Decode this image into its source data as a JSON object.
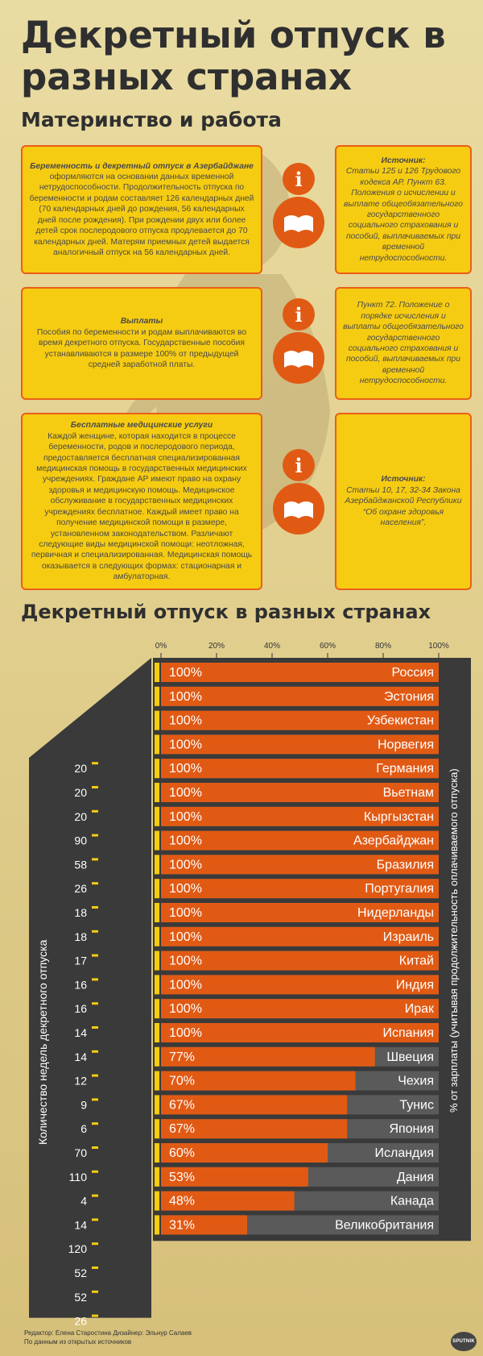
{
  "header": {
    "title": "Декретный отпуск в разных странах",
    "subtitle": "Материнство и работа"
  },
  "cards": [
    {
      "heading": "Беременность и декретный отпуск в Азербайджане",
      "body": "оформляются на основании данных временной нетрудоспособности. Продолжительность отпуска по беременности и родам составляет 126 календарных дней (70 календарных дней до рождения, 56 календарных дней после рождения). При рождении двух или более детей срок послеродового отпуска продлевается до 70 календарных дней. Матерям приемных детей выдается аналогичный отпуск на 56 календарных дней.",
      "source_heading": "Источник:",
      "source_text": "Статьи 125 и 126 Трудового кодекса АР. Пункт 63. Положения о исчислении и выплате общеобязательного государственного социального страхования и пособий, выплачиваемых при временной нетрудоспособности."
    },
    {
      "heading": "Выплаты",
      "body": "Пособия по беременности и родам выплачиваются во время декретного отпуска. Государственные пособия устанавливаются в размере 100% от предыдущей средней заработной платы.",
      "source_heading": "",
      "source_text": "Пункт 72. Положение о порядке исчисления и выплаты общеобязательного государственного социального страхования и пособий, выплачиваемых при временной нетрудоспособности."
    },
    {
      "heading": "Бесплатные медицинские услуги",
      "body": "Каждой женщине, которая находится в процессе беременности, родов и послеродового периода, предоставляется бесплатная специализированная медицинская помощь в государственных медицинских учреждениях. Граждане АР имеют право на охрану здоровья и медицинскую помощь. Медицинское обслуживание в государственных медицинских учреждениях бесплатное. Каждый имеет право на получение медицинской помощи в размере, установленном законодательством. Различают следующие виды медицинской помощи: неотложная, первичная и специализированная. Медицинская помощь оказывается в следующих формах: стационарная и амбулаторная.",
      "source_heading": "Источник:",
      "source_text": "Статьи 10, 17, 32-34 Закона Азербайджанской Республики “Об охране здоровья населения”."
    }
  ],
  "chart_data": {
    "type": "bar",
    "title": "Декретный отпуск в разных странах",
    "xlabel": "% от зарплаты (учитывая продолжительность оплачиваемого отпуска)",
    "ylabel": "Количество недель декретного отпуска",
    "x_ticks": [
      "0%",
      "20%",
      "40%",
      "60%",
      "80%",
      "100%"
    ],
    "xlim": [
      0,
      100
    ],
    "categories": [
      "Россия",
      "Эстония",
      "Узбекистан",
      "Норвегия",
      "Германия",
      "Вьетнам",
      "Кыргызстан",
      "Азербайджан",
      "Бразилия",
      "Португалия",
      "Нидерланды",
      "Израиль",
      "Китай",
      "Индия",
      "Ирак",
      "Испания",
      "Швеция",
      "Чехия",
      "Тунис",
      "Япония",
      "Исландия",
      "Дания",
      "Канада",
      "Великобритания"
    ],
    "values": [
      100,
      100,
      100,
      100,
      100,
      100,
      100,
      100,
      100,
      100,
      100,
      100,
      100,
      100,
      100,
      100,
      77,
      70,
      67,
      67,
      60,
      53,
      48,
      31
    ],
    "value_labels": [
      "100%",
      "100%",
      "100%",
      "100%",
      "100%",
      "100%",
      "100%",
      "100%",
      "100%",
      "100%",
      "100%",
      "100%",
      "100%",
      "100%",
      "100%",
      "100%",
      "77%",
      "70%",
      "67%",
      "67%",
      "60%",
      "53%",
      "48%",
      "31%"
    ],
    "weeks": [
      "20",
      "20",
      "20",
      "90",
      "58",
      "26",
      "18",
      "18",
      "17",
      "16",
      "16",
      "14",
      "14",
      "12",
      "9",
      "6",
      "70",
      "110",
      "4",
      "14",
      "120",
      "52",
      "52",
      "26"
    ],
    "colors": {
      "bar": "#e15a14",
      "track": "#3a3a3a",
      "accent": "#f6cc13",
      "border": "#ec5e16"
    }
  },
  "footer": {
    "credit_line1": "Редактор: Елена Старостина  Дизайнер: Эльнур Салаев",
    "credit_line2": "По данным из открытых источников",
    "logo_text": "SPUTNIK"
  }
}
